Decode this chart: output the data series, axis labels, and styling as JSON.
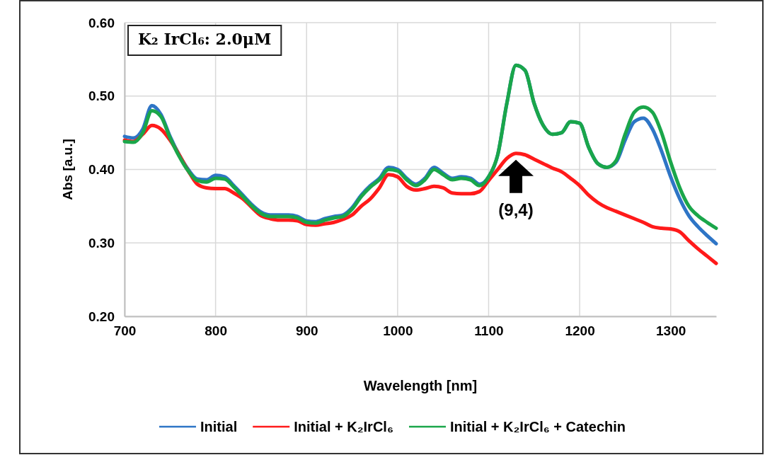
{
  "chart_data": {
    "type": "line",
    "xlabel": "Wavelength [nm]",
    "ylabel": "Abs [a.u.]",
    "xlim": [
      700,
      1350
    ],
    "xticks": [
      700,
      800,
      900,
      1000,
      1100,
      1200,
      1300
    ],
    "ylim": [
      0.2,
      0.6
    ],
    "yticks": [
      {
        "value": 0.2,
        "label": "0.20"
      },
      {
        "value": 0.3,
        "label": "0.30"
      },
      {
        "value": 0.4,
        "label": "0.40"
      },
      {
        "value": 0.5,
        "label": "0.50"
      },
      {
        "value": 0.6,
        "label": "0.60"
      }
    ],
    "grid": true,
    "legend": "bottom",
    "marker": "none",
    "line_style": "solid",
    "annotations": [
      "K₂ IrCl₆: 2.0μM",
      {
        "text": "(9,4)",
        "x": 1130,
        "y": 0.418
      }
    ],
    "x": [
      700,
      710,
      720,
      730,
      740,
      750,
      760,
      770,
      780,
      790,
      800,
      810,
      820,
      830,
      840,
      850,
      860,
      870,
      880,
      890,
      900,
      910,
      920,
      930,
      940,
      950,
      960,
      970,
      980,
      990,
      1000,
      1010,
      1020,
      1030,
      1040,
      1050,
      1060,
      1070,
      1080,
      1090,
      1100,
      1110,
      1120,
      1130,
      1140,
      1150,
      1160,
      1170,
      1180,
      1190,
      1200,
      1210,
      1220,
      1230,
      1240,
      1250,
      1260,
      1270,
      1280,
      1290,
      1300,
      1310,
      1320,
      1330,
      1340,
      1350
    ],
    "series": [
      {
        "name": "Initial",
        "color": "#2e75c6",
        "values": [
          0.445,
          0.443,
          0.455,
          0.487,
          0.475,
          0.445,
          0.42,
          0.4,
          0.387,
          0.386,
          0.392,
          0.39,
          0.378,
          0.365,
          0.352,
          0.342,
          0.338,
          0.338,
          0.338,
          0.336,
          0.33,
          0.329,
          0.333,
          0.336,
          0.338,
          0.348,
          0.365,
          0.378,
          0.388,
          0.403,
          0.4,
          0.388,
          0.38,
          0.388,
          0.403,
          0.395,
          0.388,
          0.39,
          0.388,
          0.38,
          0.39,
          0.42,
          0.49,
          0.542,
          0.535,
          0.49,
          0.46,
          0.448,
          0.45,
          0.465,
          0.463,
          0.43,
          0.408,
          0.403,
          0.41,
          0.44,
          0.465,
          0.47,
          0.455,
          0.425,
          0.39,
          0.36,
          0.337,
          0.322,
          0.31,
          0.299
        ]
      },
      {
        "name": "Initial + K₂IrCl₆",
        "color": "#ff1a1a",
        "values": [
          0.44,
          0.438,
          0.448,
          0.46,
          0.455,
          0.44,
          0.42,
          0.398,
          0.38,
          0.375,
          0.374,
          0.374,
          0.368,
          0.36,
          0.348,
          0.337,
          0.333,
          0.331,
          0.331,
          0.33,
          0.325,
          0.324,
          0.326,
          0.328,
          0.332,
          0.338,
          0.35,
          0.36,
          0.375,
          0.393,
          0.39,
          0.377,
          0.372,
          0.374,
          0.377,
          0.375,
          0.368,
          0.367,
          0.367,
          0.37,
          0.385,
          0.4,
          0.415,
          0.422,
          0.42,
          0.414,
          0.408,
          0.402,
          0.397,
          0.388,
          0.378,
          0.365,
          0.355,
          0.348,
          0.343,
          0.338,
          0.333,
          0.328,
          0.322,
          0.32,
          0.319,
          0.315,
          0.303,
          0.292,
          0.282,
          0.272
        ]
      },
      {
        "name": "Initial + K₂IrCl₆ + Catechin",
        "color": "#1aa64a",
        "values": [
          0.438,
          0.437,
          0.45,
          0.48,
          0.472,
          0.443,
          0.418,
          0.398,
          0.385,
          0.383,
          0.388,
          0.387,
          0.376,
          0.363,
          0.35,
          0.34,
          0.336,
          0.336,
          0.336,
          0.334,
          0.328,
          0.327,
          0.331,
          0.334,
          0.336,
          0.346,
          0.363,
          0.376,
          0.386,
          0.4,
          0.398,
          0.386,
          0.378,
          0.386,
          0.4,
          0.393,
          0.386,
          0.388,
          0.386,
          0.378,
          0.39,
          0.42,
          0.49,
          0.542,
          0.535,
          0.49,
          0.46,
          0.448,
          0.45,
          0.465,
          0.463,
          0.43,
          0.408,
          0.403,
          0.412,
          0.448,
          0.478,
          0.485,
          0.478,
          0.45,
          0.41,
          0.375,
          0.35,
          0.337,
          0.328,
          0.32
        ]
      }
    ]
  }
}
